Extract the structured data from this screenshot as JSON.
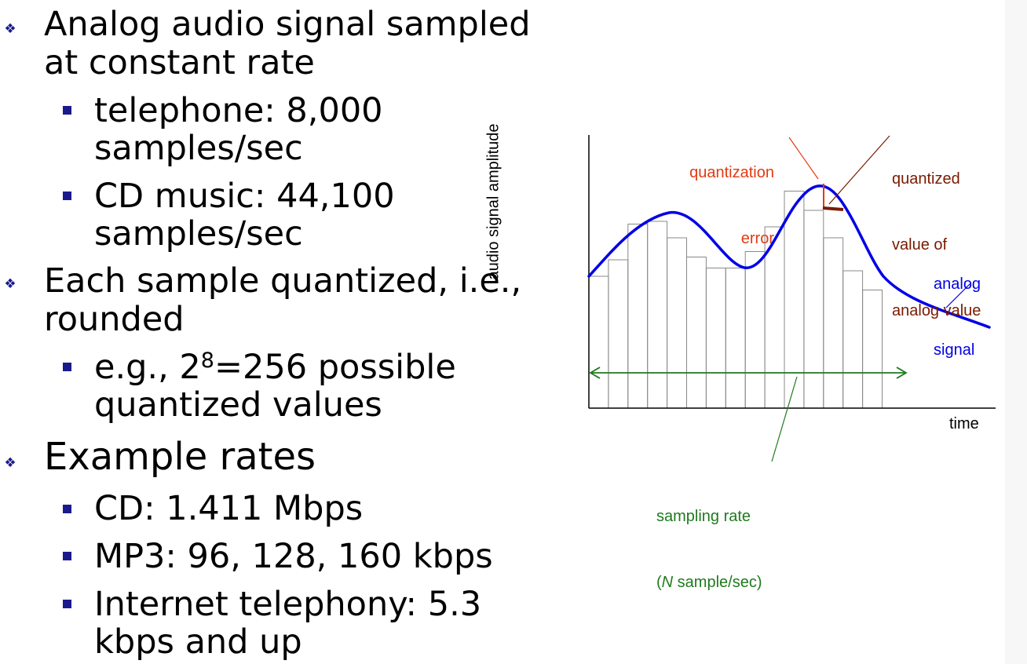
{
  "bullets": {
    "b1": {
      "line1": "Analog audio signal sampled",
      "line2": "at constant rate"
    },
    "b1a": {
      "line1": "telephone: 8,000",
      "line2": "samples/sec"
    },
    "b1b": {
      "line1": "CD music: 44,100",
      "line2": "samples/sec"
    },
    "b2": {
      "line1": "Each sample quantized, i.e.,",
      "line2": "rounded"
    },
    "b2a": {
      "pre": "e.g., 2",
      "sup": "8",
      "post": "=256 possible",
      "line2": "quantized values"
    },
    "b3": {
      "line1": "Example rates"
    },
    "b3a": {
      "line1": "CD: 1.411 Mbps"
    },
    "b3b": {
      "line1": "MP3: 96, 128, 160 kbps"
    },
    "b3c": {
      "line1": "Internet telephony: 5.3",
      "line2": "kbps and up"
    }
  },
  "figure": {
    "y_axis_label": "audio signal amplitude",
    "x_axis_label": "time",
    "quantization_error_label": {
      "line1": "quantization",
      "line2": "error"
    },
    "quantized_value_label": {
      "line1": "quantized",
      "line2": "value of",
      "line3": "analog value"
    },
    "analog_signal_label": {
      "line1": "analog",
      "line2": "signal"
    },
    "sampling_rate_label": {
      "line1": "sampling rate",
      "pre": "(",
      "italic": "N",
      "post": " sample/sec)"
    },
    "colors": {
      "analog_signal": "#0000e6",
      "quantization_error": "#e23a12",
      "quantized_value": "#7a1a00",
      "sampling_rate": "#1f7a1f",
      "bars": "#888888",
      "bullet_marker": "#1a1a8c"
    },
    "quantized_sample_values": [
      0.48,
      0.54,
      0.67,
      0.68,
      0.62,
      0.55,
      0.51,
      0.51,
      0.57,
      0.66,
      0.79,
      0.72,
      0.62,
      0.5,
      0.43
    ]
  }
}
